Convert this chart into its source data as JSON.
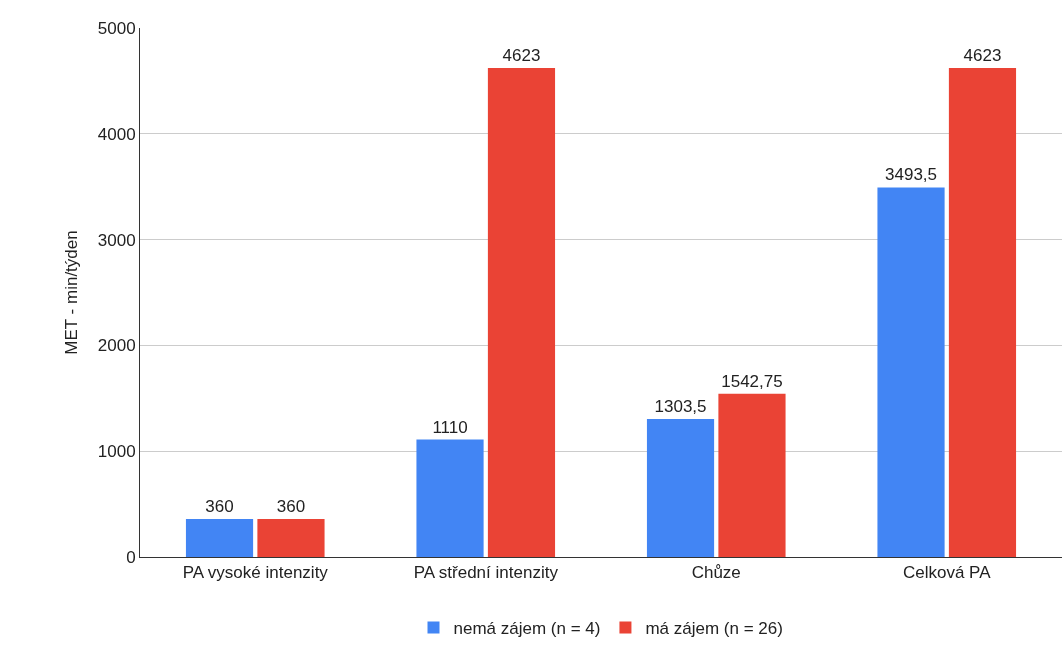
{
  "chart_data": {
    "type": "bar",
    "ylabel": "MET - min/týden",
    "categories": [
      "PA vysoké intenzity",
      "PA střední intenzity",
      "Chůze",
      "Celková PA"
    ],
    "series": [
      {
        "name": "nemá zájem (n = 4)",
        "color": "#4285f4",
        "values": [
          360,
          1110,
          1303.5,
          3493.5
        ],
        "value_labels": [
          "360",
          "1110",
          "1303,5",
          "3493,5"
        ]
      },
      {
        "name": "má zájem (n = 26)",
        "color": "#ea4335",
        "values": [
          360,
          4623,
          1542.75,
          4623
        ],
        "value_labels": [
          "360",
          "4623",
          "1542,75",
          "4623"
        ]
      }
    ],
    "ylim": [
      0,
      5000
    ],
    "yticks": [
      0,
      1000,
      2000,
      3000,
      4000,
      5000
    ],
    "grid": "y",
    "legend": "bottom"
  }
}
